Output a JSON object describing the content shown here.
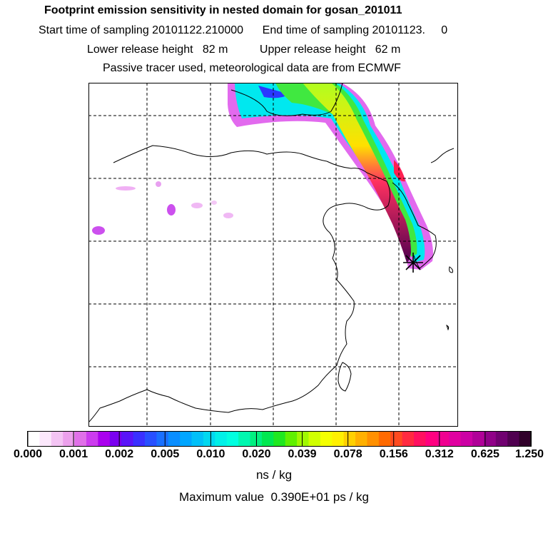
{
  "title": "Footprint emission sensitivity in nested domain for gosan_201011",
  "sampling_line": "Start time of sampling 20101122.210000      End time of sampling 20101123.     0",
  "release_line": "Lower release height   82 m          Upper release height   62 m",
  "tracer_line": "Passive tracer used, meteorological data are from ECMWF",
  "colorbar": {
    "ticks": [
      "0.000",
      "0.001",
      "0.002",
      "0.005",
      "0.010",
      "0.020",
      "0.039",
      "0.078",
      "0.156",
      "0.312",
      "0.625",
      "1.250"
    ],
    "unit": "ns / kg",
    "colors": [
      "#ffffff",
      "#fce8fc",
      "#f4c4f4",
      "#eca0ec",
      "#e070e8",
      "#cc3cee",
      "#aa00ee",
      "#7a00f0",
      "#5a14f8",
      "#3a30ff",
      "#2850ff",
      "#1a70ff",
      "#0a8eff",
      "#00a6ff",
      "#00c0f8",
      "#00d8f0",
      "#00f0e8",
      "#00ffe0",
      "#00f8b0",
      "#00f080",
      "#00e850",
      "#20e820",
      "#60f000",
      "#a0f800",
      "#d0ff00",
      "#f4ff00",
      "#fff000",
      "#ffd000",
      "#ffb000",
      "#ff9000",
      "#ff6a00",
      "#ff4a20",
      "#ff2a40",
      "#ff1060",
      "#ff0080",
      "#f00090",
      "#e000a0",
      "#cc00a4",
      "#b00098",
      "#900088",
      "#700070",
      "#500050",
      "#30002a"
    ]
  },
  "max_value_line": "Maximum value  0.390E+01 ps / kg",
  "station_marker": "asterisk-icon"
}
